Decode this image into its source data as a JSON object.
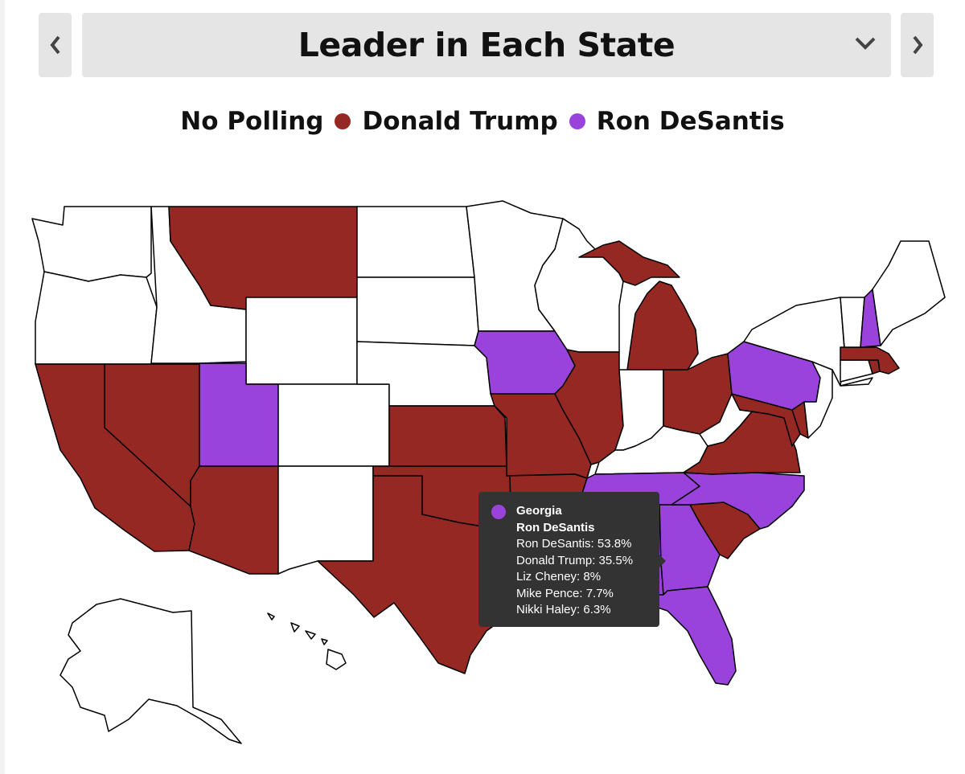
{
  "header": {
    "title": "Leader in Each State",
    "prev_icon": "chevron-left-icon",
    "next_icon": "chevron-right-icon",
    "dropdown_icon": "chevron-down-icon"
  },
  "legend": [
    {
      "label": "No Polling",
      "color": ""
    },
    {
      "label": "Donald Trump",
      "color": "#962824"
    },
    {
      "label": "Ron DeSantis",
      "color": "#9a43dc"
    }
  ],
  "map": {
    "colors": {
      "none": "#ffffff",
      "trump": "#962824",
      "desantis": "#9a43dc",
      "border": "#000000"
    },
    "states": {
      "WA": "none",
      "OR": "none",
      "CA": "trump",
      "NV": "trump",
      "ID": "none",
      "MT": "trump",
      "WY": "none",
      "UT": "desantis",
      "AZ": "trump",
      "CO": "none",
      "NM": "none",
      "ND": "none",
      "SD": "none",
      "NE": "none",
      "KS": "trump",
      "OK": "trump",
      "TX": "trump",
      "MN": "none",
      "IA": "desantis",
      "MO": "trump",
      "AR": "trump",
      "LA": "trump",
      "WI": "none",
      "IL": "trump",
      "MI": "trump",
      "IN": "none",
      "OH": "trump",
      "KY": "none",
      "TN": "desantis",
      "MS": "trump",
      "AL": "desantis",
      "GA": "desantis",
      "FL": "desantis",
      "SC": "trump",
      "NC": "desantis",
      "VA": "trump",
      "WV": "none",
      "MD": "trump",
      "DE": "trump",
      "PA": "desantis",
      "NJ": "none",
      "NY": "none",
      "CT": "none",
      "RI": "trump",
      "MA": "trump",
      "VT": "none",
      "NH": "desantis",
      "ME": "none",
      "AK": "none",
      "HI": "none"
    }
  },
  "tooltip": {
    "state": "Georgia",
    "leader": "Ron DeSantis",
    "lines": [
      "Ron DeSantis: 53.8%",
      "Donald Trump: 35.5%",
      "Liz Cheney: 8%",
      "Mike Pence: 7.7%",
      "Nikki Haley: 6.3%"
    ]
  }
}
